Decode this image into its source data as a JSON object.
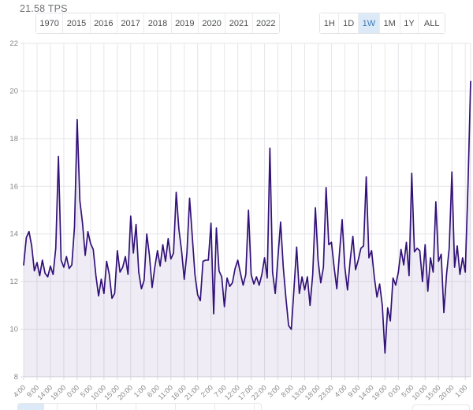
{
  "header": {
    "current_value": "21.58 TPS"
  },
  "year_buttons": [
    "1970",
    "2015",
    "2016",
    "2017",
    "2018",
    "2019",
    "2020",
    "2021",
    "2022"
  ],
  "range_buttons": [
    {
      "label": "1H",
      "selected": false
    },
    {
      "label": "1D",
      "selected": false
    },
    {
      "label": "1W",
      "selected": true
    },
    {
      "label": "1M",
      "selected": false
    },
    {
      "label": "1Y",
      "selected": false
    },
    {
      "label": "ALL",
      "selected": false
    }
  ],
  "colors": {
    "line": "#321178",
    "area_fill": "rgba(49,17,122,0.08)",
    "grid": "#e6e6ea",
    "axis_bottom": "#dcdce0",
    "axis_text": "#85878a",
    "selected_bg": "#dce9f7",
    "selected_text": "#3d7ab8",
    "button_text": "#4a4d50",
    "tps_text": "#6f7275"
  },
  "chart_data": {
    "type": "area",
    "title": "",
    "xlabel": "",
    "ylabel": "",
    "unit": "TPS",
    "ylim": [
      8,
      22
    ],
    "y_ticks": [
      8,
      10,
      12,
      14,
      16,
      18,
      20,
      22
    ],
    "grid": true,
    "legend": "none",
    "x_label_every_n_points": 5,
    "x_tick_labels": [
      "4:00",
      "9:00",
      "14:00",
      "19:00",
      "0:00",
      "5:00",
      "10:00",
      "15:00",
      "20:00",
      "1:00",
      "6:00",
      "11:00",
      "16:00",
      "21:00",
      "2:00",
      "7:00",
      "12:00",
      "17:00",
      "22:00",
      "3:00",
      "8:00",
      "13:00",
      "18:00",
      "23:00",
      "4:00",
      "9:00",
      "14:00",
      "19:00",
      "0:00",
      "5:00",
      "10:00",
      "15:00",
      "20:00",
      "1:00"
    ],
    "values": [
      12.7,
      13.85,
      14.1,
      13.5,
      12.45,
      12.8,
      12.25,
      12.9,
      12.35,
      12.2,
      12.65,
      12.3,
      13.4,
      17.25,
      12.9,
      12.6,
      13.05,
      12.55,
      12.7,
      14.3,
      18.8,
      15.4,
      14.45,
      13.1,
      14.1,
      13.6,
      13.35,
      12.25,
      11.4,
      12.1,
      11.5,
      12.85,
      12.3,
      11.3,
      11.5,
      13.3,
      12.4,
      12.6,
      13.05,
      12.3,
      14.75,
      13.2,
      14.4,
      12.4,
      11.7,
      12.05,
      14.0,
      13.1,
      11.75,
      12.6,
      13.3,
      12.65,
      13.55,
      12.85,
      13.8,
      12.95,
      13.2,
      15.75,
      14.2,
      13.3,
      12.1,
      13.2,
      15.5,
      13.9,
      12.3,
      11.45,
      11.2,
      12.85,
      12.9,
      12.9,
      14.45,
      10.65,
      14.25,
      12.45,
      12.2,
      10.95,
      12.15,
      11.8,
      11.95,
      12.55,
      12.9,
      12.35,
      11.85,
      12.3,
      15.0,
      12.3,
      11.9,
      12.2,
      11.85,
      12.3,
      13.0,
      12.15,
      17.6,
      12.4,
      11.5,
      13.0,
      14.5,
      12.6,
      11.3,
      10.15,
      10.0,
      11.7,
      13.45,
      11.5,
      12.2,
      11.65,
      12.2,
      11.0,
      12.3,
      15.1,
      12.9,
      11.95,
      12.6,
      15.95,
      13.55,
      13.65,
      12.6,
      11.7,
      13.2,
      14.6,
      12.6,
      11.65,
      12.9,
      13.9,
      12.5,
      12.9,
      13.4,
      13.5,
      16.4,
      13.0,
      13.3,
      12.2,
      11.35,
      11.9,
      11.0,
      9.0,
      10.9,
      10.35,
      12.15,
      11.85,
      12.4,
      13.35,
      12.7,
      13.65,
      12.25,
      16.55,
      13.25,
      13.4,
      13.3,
      12.0,
      13.55,
      11.6,
      13.0,
      12.4,
      15.35,
      12.85,
      13.15,
      10.7,
      12.3,
      13.4,
      16.6,
      12.6,
      13.5,
      12.3,
      13.0,
      12.4,
      16.0,
      20.4
    ]
  }
}
